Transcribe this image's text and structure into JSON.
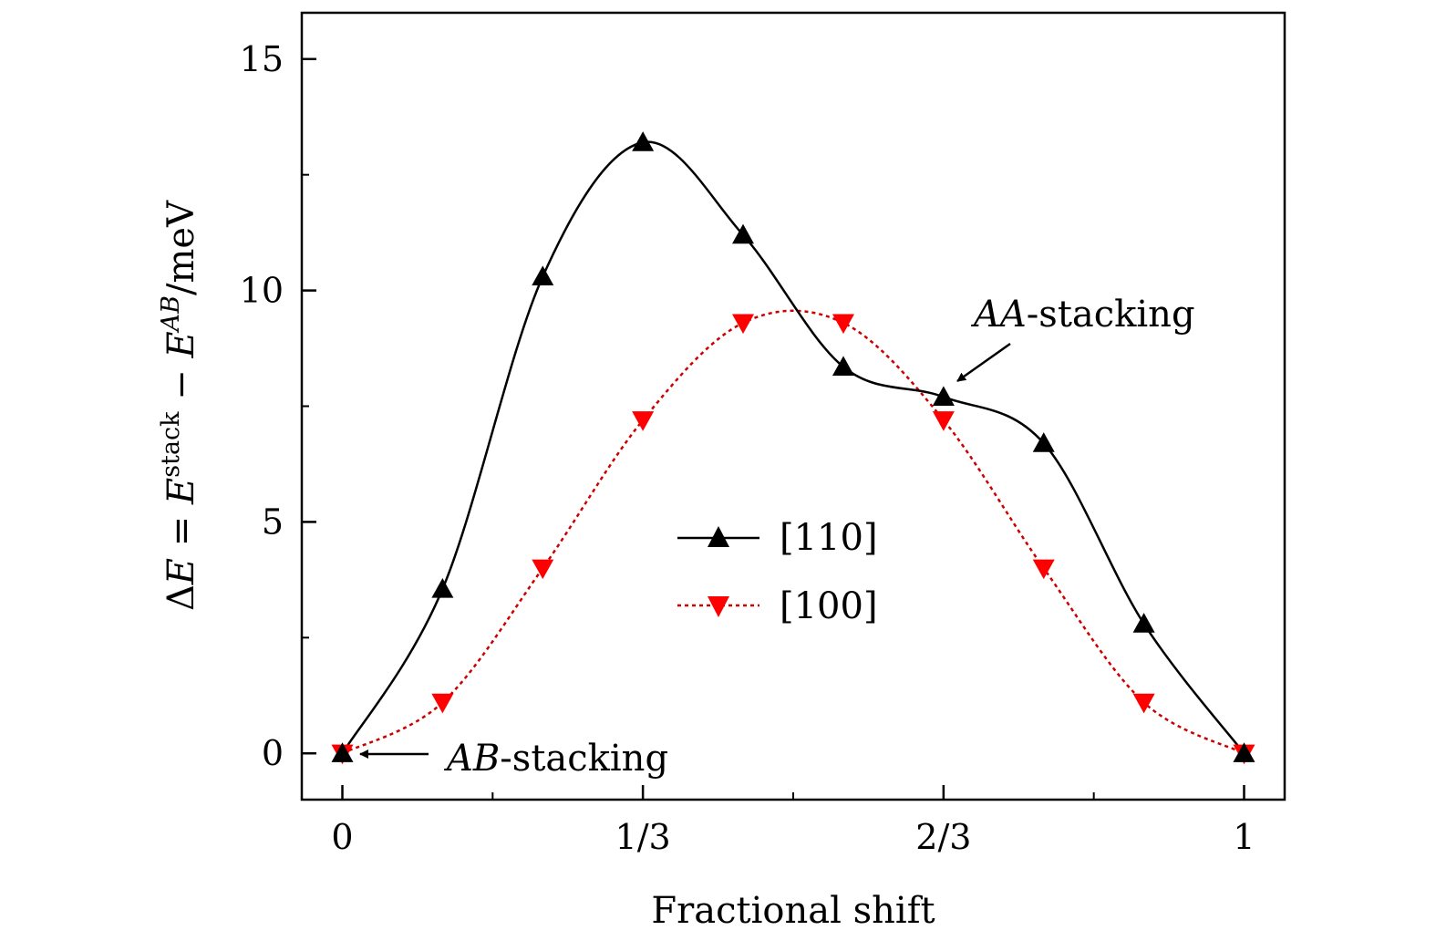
{
  "chart_data": {
    "type": "line",
    "xlabel": "Fractional shift",
    "ylabel": {
      "prefix": "Δ",
      "E1": "E",
      "eq": " = ",
      "E2": "E",
      "sup1": "stack",
      "minus": " − ",
      "E3": "E",
      "sup2": "AB",
      "unit": "/meV"
    },
    "xlim": [
      -0.045,
      1.045
    ],
    "ylim": [
      -1.0,
      16.0
    ],
    "xticks": [
      {
        "value": 0,
        "label": "0"
      },
      {
        "value": 0.3333,
        "label": "1/3"
      },
      {
        "value": 0.6667,
        "label": "2/3"
      },
      {
        "value": 1,
        "label": "1"
      }
    ],
    "yticks": [
      {
        "value": 0,
        "label": "0"
      },
      {
        "value": 5,
        "label": "5"
      },
      {
        "value": 10,
        "label": "10"
      },
      {
        "value": 15,
        "label": "15"
      }
    ],
    "grid": false,
    "legend_position": "center",
    "series": [
      {
        "name": "[110]",
        "color": "#000000",
        "marker": "triangle-up",
        "line_style": "solid",
        "x": [
          0,
          0.1111,
          0.2222,
          0.3333,
          0.4444,
          0.5556,
          0.6667,
          0.7778,
          0.8889,
          1
        ],
        "y": [
          0,
          3.55,
          10.3,
          13.2,
          11.2,
          8.35,
          7.7,
          6.7,
          2.8,
          0
        ]
      },
      {
        "name": "[100]",
        "color": "#ff0000",
        "line_color": "#cc0000",
        "marker": "triangle-down",
        "line_style": "dotted",
        "x": [
          0,
          0.1111,
          0.2222,
          0.3333,
          0.4444,
          0.5556,
          0.6667,
          0.7778,
          0.8889,
          1
        ],
        "y": [
          0,
          1.1,
          4.0,
          7.2,
          9.3,
          9.3,
          7.2,
          4.0,
          1.1,
          0
        ]
      }
    ],
    "annotations": [
      {
        "italic": "AB",
        "text": "-stacking",
        "target": [
          0,
          0
        ]
      },
      {
        "italic": "AA",
        "text": "-stacking",
        "target": [
          0.6667,
          7.7
        ]
      }
    ]
  }
}
